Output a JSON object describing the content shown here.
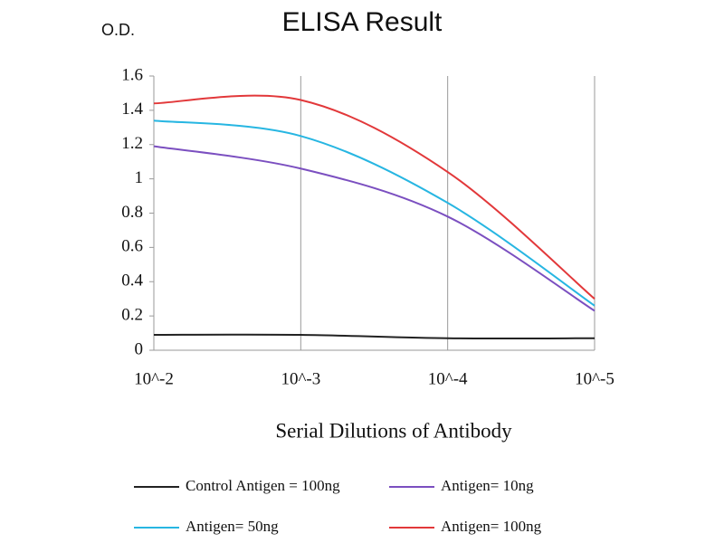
{
  "chart_data": {
    "type": "line",
    "title": "ELISA Result",
    "y_label": "O.D.",
    "x_label": "Serial Dilutions of Antibody",
    "categories": [
      "10^-2",
      "10^-3",
      "10^-4",
      "10^-5"
    ],
    "ylim": [
      0,
      1.6
    ],
    "yticks": [
      0,
      0.2,
      0.4,
      0.6,
      0.8,
      1,
      1.2,
      1.4,
      1.6
    ],
    "grid": "x",
    "smooth": true,
    "series": [
      {
        "name": "Control Antigen = 100ng",
        "color": "#222222",
        "values": [
          0.09,
          0.09,
          0.07,
          0.07
        ]
      },
      {
        "name": "Antigen= 10ng",
        "color": "#7b4fc0",
        "values": [
          1.19,
          1.06,
          0.78,
          0.23
        ]
      },
      {
        "name": "Antigen= 50ng",
        "color": "#27b6e2",
        "values": [
          1.34,
          1.25,
          0.86,
          0.26
        ]
      },
      {
        "name": "Antigen= 100ng",
        "color": "#e2383a",
        "values": [
          1.44,
          1.46,
          1.04,
          0.3
        ]
      }
    ]
  }
}
